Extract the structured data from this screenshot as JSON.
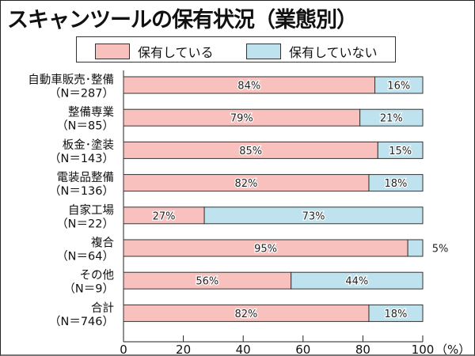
{
  "chart_data": {
    "type": "bar",
    "orientation": "horizontal",
    "stacked": true,
    "title": "スキャンツールの保有状況（業態別）",
    "categories": [
      {
        "name": "自動車販売･整備",
        "n": "（N＝287）"
      },
      {
        "name": "整備専業",
        "n": "（N＝85）"
      },
      {
        "name": "板金･塗装",
        "n": "（N＝143）"
      },
      {
        "name": "電装品整備",
        "n": "（N＝136）"
      },
      {
        "name": "自家工場",
        "n": "（N＝22）"
      },
      {
        "name": "複合",
        "n": "（N＝64）"
      },
      {
        "name": "その他",
        "n": "（N＝9）"
      },
      {
        "name": "合計",
        "n": "（N＝746）"
      }
    ],
    "series": [
      {
        "name": "保有している",
        "color": "#f8c1bd",
        "values": [
          84,
          79,
          85,
          82,
          27,
          95,
          56,
          82
        ]
      },
      {
        "name": "保有していない",
        "color": "#bfe3ee",
        "values": [
          16,
          21,
          15,
          18,
          73,
          5,
          44,
          18
        ]
      }
    ],
    "xlim": [
      0,
      100
    ],
    "xticks": [
      "0",
      "20",
      "40",
      "60",
      "80",
      "100"
    ],
    "xunit": "（%）",
    "legend": "top",
    "grid": false
  }
}
